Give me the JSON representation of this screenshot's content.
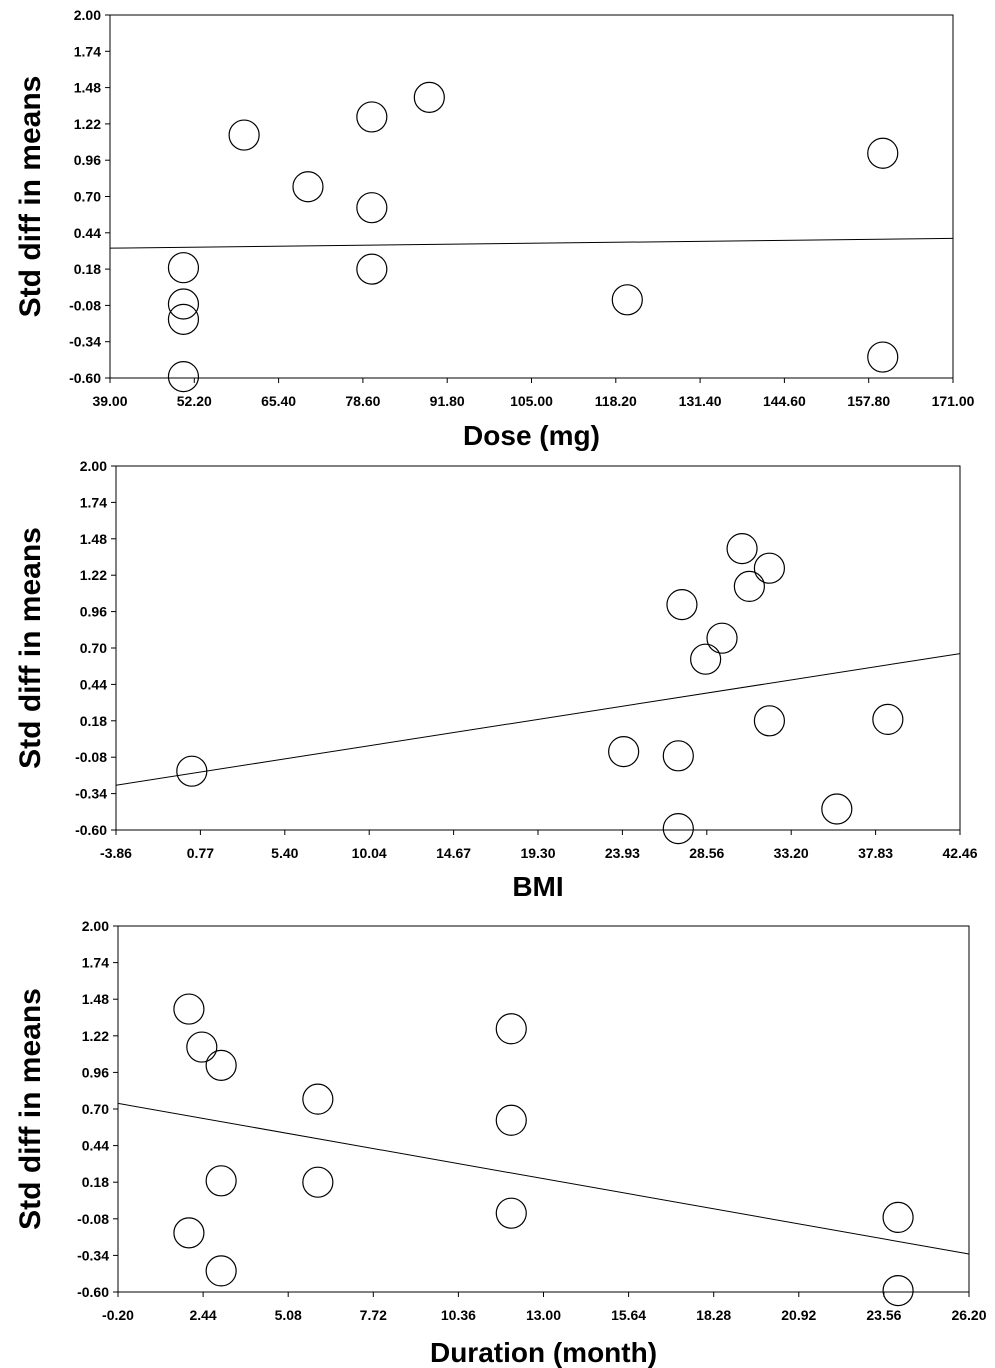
{
  "chart_data": [
    {
      "type": "scatter",
      "title": "",
      "xlabel": "Dose (mg)",
      "ylabel": "Std diff in means",
      "xlim": [
        39.0,
        171.0
      ],
      "ylim": [
        -0.6,
        2.0
      ],
      "x_ticks": [
        "39.00",
        "52.20",
        "65.40",
        "78.60",
        "91.80",
        "105.00",
        "118.20",
        "131.40",
        "144.60",
        "157.80",
        "171.00"
      ],
      "y_ticks": [
        "2.00",
        "1.74",
        "1.48",
        "1.22",
        "0.96",
        "0.70",
        "0.44",
        "0.18",
        "-0.08",
        "-0.34",
        "-0.60"
      ],
      "points": [
        {
          "x": 50.5,
          "y": 0.19
        },
        {
          "x": 50.5,
          "y": -0.07
        },
        {
          "x": 50.5,
          "y": -0.18
        },
        {
          "x": 50.5,
          "y": -0.59
        },
        {
          "x": 60.0,
          "y": 1.14
        },
        {
          "x": 70.0,
          "y": 0.77
        },
        {
          "x": 80.0,
          "y": 1.27
        },
        {
          "x": 80.0,
          "y": 0.62
        },
        {
          "x": 80.0,
          "y": 0.18
        },
        {
          "x": 89.0,
          "y": 1.41
        },
        {
          "x": 120.0,
          "y": -0.04
        },
        {
          "x": 160.0,
          "y": 1.01
        },
        {
          "x": 160.0,
          "y": -0.45
        }
      ],
      "regression": [
        {
          "x": 39.0,
          "y": 0.33
        },
        {
          "x": 171.0,
          "y": 0.4
        }
      ]
    },
    {
      "type": "scatter",
      "title": "",
      "xlabel": "BMI",
      "ylabel": "Std diff in means",
      "xlim": [
        -3.86,
        42.46
      ],
      "ylim": [
        -0.6,
        2.0
      ],
      "x_ticks": [
        "-3.86",
        "0.77",
        "5.40",
        "10.04",
        "14.67",
        "19.30",
        "23.93",
        "28.56",
        "33.20",
        "37.83",
        "42.46"
      ],
      "y_ticks": [
        "2.00",
        "1.74",
        "1.48",
        "1.22",
        "0.96",
        "0.70",
        "0.44",
        "0.18",
        "-0.08",
        "-0.34",
        "-0.60"
      ],
      "points": [
        {
          "x": 0.3,
          "y": -0.18
        },
        {
          "x": 24.0,
          "y": -0.04
        },
        {
          "x": 27.0,
          "y": -0.07
        },
        {
          "x": 27.0,
          "y": -0.59
        },
        {
          "x": 27.2,
          "y": 1.01
        },
        {
          "x": 28.5,
          "y": 0.62
        },
        {
          "x": 29.4,
          "y": 0.77
        },
        {
          "x": 30.5,
          "y": 1.41
        },
        {
          "x": 30.9,
          "y": 1.14
        },
        {
          "x": 32.0,
          "y": 1.27
        },
        {
          "x": 32.0,
          "y": 0.18
        },
        {
          "x": 35.7,
          "y": -0.45
        },
        {
          "x": 38.5,
          "y": 0.19
        }
      ],
      "regression": [
        {
          "x": -3.86,
          "y": -0.28
        },
        {
          "x": 42.46,
          "y": 0.66
        }
      ]
    },
    {
      "type": "scatter",
      "title": "",
      "xlabel": "Duration (month)",
      "ylabel": "Std diff in means",
      "xlim": [
        -0.2,
        26.2
      ],
      "ylim": [
        -0.6,
        2.0
      ],
      "x_ticks": [
        "-0.20",
        "2.44",
        "5.08",
        "7.72",
        "10.36",
        "13.00",
        "15.64",
        "18.28",
        "20.92",
        "23.56",
        "26.20"
      ],
      "y_ticks": [
        "2.00",
        "1.74",
        "1.48",
        "1.22",
        "0.96",
        "0.70",
        "0.44",
        "0.18",
        "-0.08",
        "-0.34",
        "-0.60"
      ],
      "points": [
        {
          "x": 2.0,
          "y": 1.41
        },
        {
          "x": 2.0,
          "y": -0.18
        },
        {
          "x": 2.4,
          "y": 1.14
        },
        {
          "x": 3.0,
          "y": 1.01
        },
        {
          "x": 3.0,
          "y": 0.19
        },
        {
          "x": 3.0,
          "y": -0.45
        },
        {
          "x": 6.0,
          "y": 0.77
        },
        {
          "x": 6.0,
          "y": 0.18
        },
        {
          "x": 12.0,
          "y": 1.27
        },
        {
          "x": 12.0,
          "y": 0.62
        },
        {
          "x": 12.0,
          "y": -0.04
        },
        {
          "x": 24.0,
          "y": -0.07
        },
        {
          "x": 24.0,
          "y": -0.59
        }
      ],
      "regression": [
        {
          "x": -0.2,
          "y": 0.74
        },
        {
          "x": 26.2,
          "y": -0.33
        }
      ]
    }
  ]
}
